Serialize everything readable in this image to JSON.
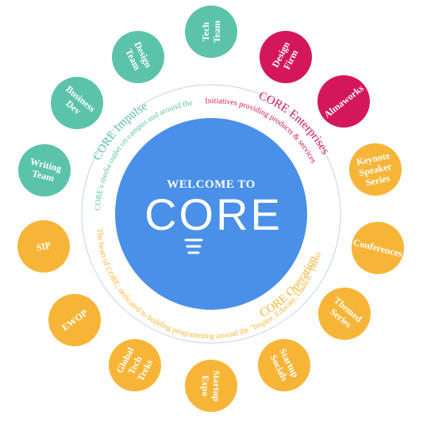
{
  "center": {
    "welcome": "WELCOME TO",
    "logo_text": "CORE",
    "logo_icon": "lightbulb-icon"
  },
  "colors": {
    "center": "#4a90e8",
    "impulse": "#5cc3ab",
    "enterprises": "#d4175a",
    "operations": "#f7b538",
    "ring": "#c9dcee"
  },
  "arcs": [
    {
      "id": "impulse",
      "title": "CORE Impulse",
      "description": "CORE's media outlet on campus and around the world"
    },
    {
      "id": "enterprises",
      "title": "CORE Enterprises",
      "description": "Initiatives providing products & services"
    },
    {
      "id": "operations",
      "title": "CORE Operations",
      "description": "The heart of CORE; dedicated to building programming around the \"Inspire, Educate, Launch\" Thesis"
    }
  ],
  "nodes": [
    {
      "label": "Tech Team",
      "group": "impulse"
    },
    {
      "label": "Design Firm",
      "group": "enterprises"
    },
    {
      "label": "Almaworks",
      "group": "enterprises"
    },
    {
      "label": "Keynote Speaker Series",
      "group": "operations"
    },
    {
      "label": "Conferences",
      "group": "operations"
    },
    {
      "label": "Themed Series",
      "group": "operations"
    },
    {
      "label": "Startup Socials",
      "group": "operations"
    },
    {
      "label": "Startup Expo",
      "group": "operations"
    },
    {
      "label": "Global Tech Treks",
      "group": "operations"
    },
    {
      "label": "EWOP",
      "group": "operations"
    },
    {
      "label": "SIP",
      "group": "operations"
    },
    {
      "label": "Writing Team",
      "group": "impulse"
    },
    {
      "label": "Business Dev",
      "group": "impulse"
    },
    {
      "label": "Design Team",
      "group": "impulse"
    }
  ]
}
